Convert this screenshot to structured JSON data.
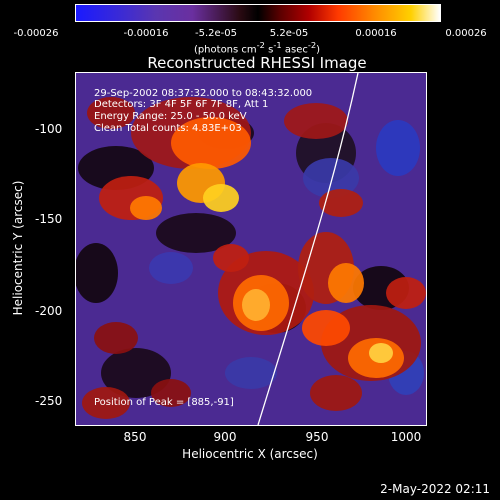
{
  "colorbar": {
    "ticks": [
      "-0.00026",
      "-0.00016",
      "-5.2e-05",
      "5.2e-05",
      "0.00016",
      "0.00026"
    ],
    "units_text": "(photons cm",
    "units_sup1": "-2",
    "units_mid": " s",
    "units_sup2": "-1",
    "units_tail": " asec",
    "units_sup3": "-2",
    "units_close": ")"
  },
  "title": "Reconstructed RHESSI Image",
  "annotation": {
    "line1": "29-Sep-2002 08:37:32.000 to 08:43:32.000",
    "line2": "Detectors: 3F 4F 5F 6F 7F 8F, Att 1",
    "line3": "Energy Range: 25.0 - 50.0 keV",
    "line4": "Clean     Total counts: 4.83E+03",
    "peak": "Position of Peak = [885,-91]"
  },
  "axes": {
    "xlabel": "Heliocentric X (arcsec)",
    "ylabel": "Heliocentric Y (arcsec)",
    "xticks": [
      "850",
      "900",
      "950",
      "1000"
    ],
    "yticks": [
      "-100",
      "-150",
      "-200",
      "-250"
    ]
  },
  "footer": "2-May-2022 02:11"
}
